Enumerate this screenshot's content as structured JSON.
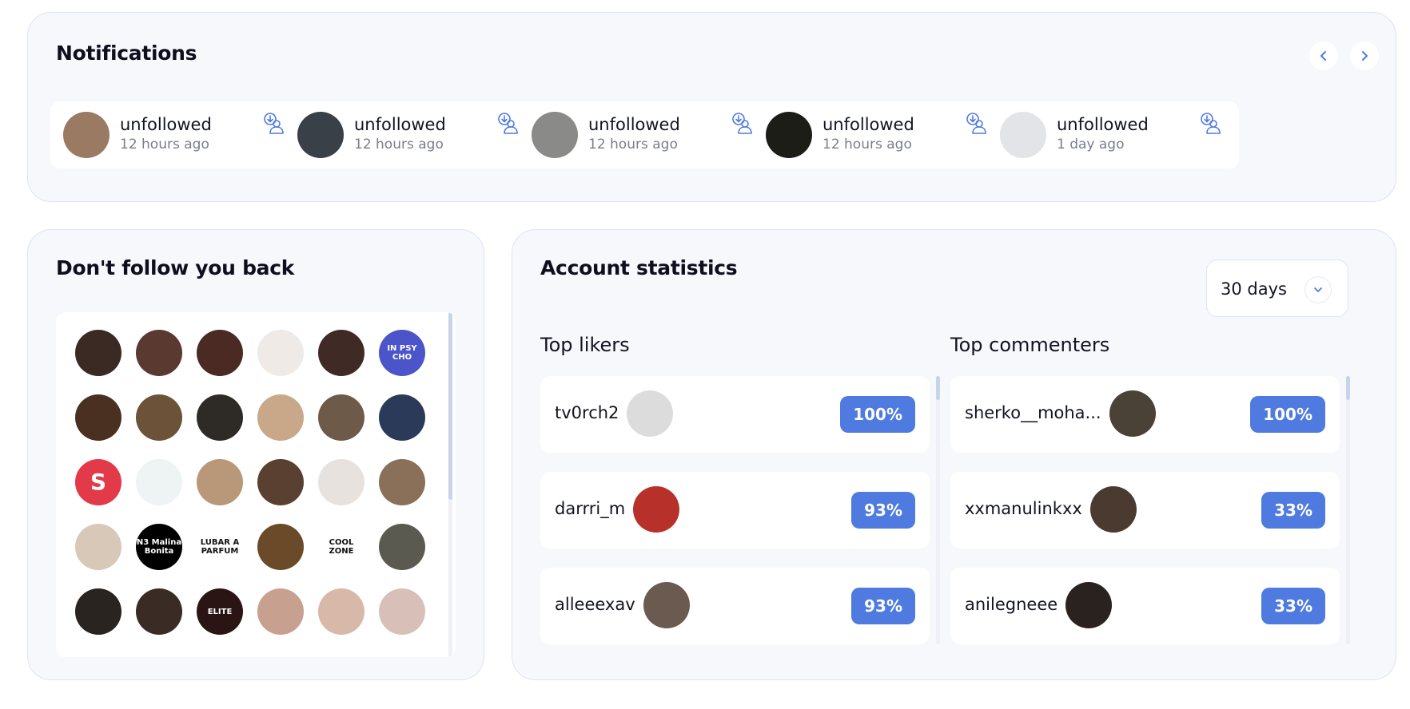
{
  "notifications": {
    "title": "Notifications",
    "items": [
      {
        "action": "unfollowed",
        "time": "12 hours ago",
        "avatar_color": "#9a7a62"
      },
      {
        "action": "unfollowed",
        "time": "12 hours ago",
        "avatar_color": "#3a4048"
      },
      {
        "action": "unfollowed",
        "time": "12 hours ago",
        "avatar_color": "#8a8a88"
      },
      {
        "action": "unfollowed",
        "time": "12 hours ago",
        "avatar_color": "#1b1d16"
      },
      {
        "action": "unfollowed",
        "time": "1 day ago",
        "avatar_color": "#e3e4e8"
      }
    ]
  },
  "dont_follow_back": {
    "title": "Don't follow you back",
    "avatars": [
      {
        "color": "#3b2a24",
        "text": ""
      },
      {
        "color": "#5a3a30",
        "text": ""
      },
      {
        "color": "#4a2a22",
        "text": ""
      },
      {
        "color": "#efeae6",
        "text": ""
      },
      {
        "color": "#3f2a26",
        "text": ""
      },
      {
        "color": "#4b55c9",
        "text": "IN PSY CHO"
      },
      {
        "color": "#4a3020",
        "text": ""
      },
      {
        "color": "#6b5238",
        "text": ""
      },
      {
        "color": "#2e2a26",
        "text": ""
      },
      {
        "color": "#c9a88a",
        "text": ""
      },
      {
        "color": "#6d5a48",
        "text": ""
      },
      {
        "color": "#2c3a5a",
        "text": ""
      },
      {
        "color": "#e23a48",
        "text": "S"
      },
      {
        "color": "#eef4f4",
        "text": ""
      },
      {
        "color": "#b89878",
        "text": ""
      },
      {
        "color": "#5a4030",
        "text": ""
      },
      {
        "color": "#e8e2de",
        "text": ""
      },
      {
        "color": "#8a7058",
        "text": ""
      },
      {
        "color": "#d8c8b8",
        "text": ""
      },
      {
        "color": "#000000",
        "text": "N3 Malina Bonita"
      },
      {
        "color": "#ffffff",
        "text": "LUBAR A PARFUM"
      },
      {
        "color": "#6a4a28",
        "text": ""
      },
      {
        "color": "#ffffff",
        "text": "COOL ZONE"
      },
      {
        "color": "#5a5a50",
        "text": ""
      },
      {
        "color": "#2a2420",
        "text": ""
      },
      {
        "color": "#3a2c24",
        "text": ""
      },
      {
        "color": "#2a1414",
        "text": "ELITE"
      },
      {
        "color": "#c8a090",
        "text": ""
      },
      {
        "color": "#d8b8a8",
        "text": ""
      },
      {
        "color": "#d8c0b8",
        "text": ""
      }
    ]
  },
  "account_statistics": {
    "title": "Account statistics",
    "period": "30 days",
    "top_likers": {
      "title": "Top likers",
      "rows": [
        {
          "username": "tv0rch2",
          "percent": "100%",
          "avatar_color": "#dcdcdc"
        },
        {
          "username": "darrri_m",
          "percent": "93%",
          "avatar_color": "#b8302a"
        },
        {
          "username": "alleeexav",
          "percent": "93%",
          "avatar_color": "#6a5a50"
        }
      ]
    },
    "top_commenters": {
      "title": "Top commenters",
      "rows": [
        {
          "username": "sherko__moha...",
          "percent": "100%",
          "avatar_color": "#4a4236"
        },
        {
          "username": "xxmanulinkxx",
          "percent": "33%",
          "avatar_color": "#4a3a30"
        },
        {
          "username": "anilegneee",
          "percent": "33%",
          "avatar_color": "#2a221e"
        }
      ]
    }
  },
  "colors": {
    "accent": "#4f7ae0",
    "card_bg": "#f7f8fc",
    "card_border": "#dfe3f3"
  }
}
